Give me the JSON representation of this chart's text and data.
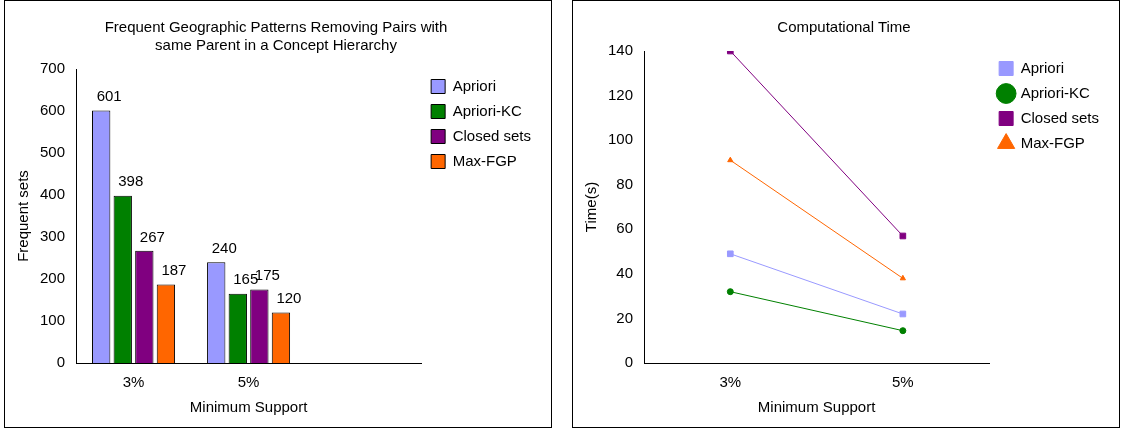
{
  "chart_data": [
    {
      "type": "bar",
      "title": "Frequent Geographic Patterns Removing Pairs with same Parent in a Concept Hierarchy",
      "xlabel": "Minimum Support",
      "ylabel": "Frequent sets",
      "categories": [
        "3%",
        "5%",
        null
      ],
      "series": [
        {
          "name": "Apriori",
          "color": "#9999ff",
          "values": [
            601,
            240,
            null
          ]
        },
        {
          "name": "Apriori-KC",
          "color": "#008000",
          "values": [
            398,
            165,
            null
          ]
        },
        {
          "name": "Closed sets",
          "color": "#800080",
          "values": [
            267,
            175,
            null
          ]
        },
        {
          "name": "Max-FGP",
          "color": "#ff6600",
          "values": [
            187,
            120,
            null
          ]
        }
      ],
      "ylim": [
        0,
        700
      ],
      "yticks": [
        0,
        100,
        200,
        300,
        400,
        500,
        600,
        700
      ],
      "grid": false,
      "legend": "top right",
      "data_labels": true
    },
    {
      "type": "line",
      "title": "Computational Time",
      "xlabel": "Minimum Support",
      "ylabel": "Time(s)",
      "categories": [
        "3%",
        "5%"
      ],
      "series": [
        {
          "name": "Apriori",
          "color": "#9999ff",
          "values": [
            49,
            22
          ],
          "marker": "square"
        },
        {
          "name": "Apriori-KC",
          "color": "#008000",
          "values": [
            32,
            14.5
          ],
          "marker": "circle"
        },
        {
          "name": "Closed sets",
          "color": "#800080",
          "values": [
            140,
            57
          ],
          "marker": "square"
        },
        {
          "name": "Max-FGP",
          "color": "#ff6600",
          "values": [
            91,
            38
          ],
          "marker": "triangle"
        }
      ],
      "ylim": [
        0,
        140
      ],
      "yticks": [
        0,
        20,
        40,
        60,
        80,
        100,
        120,
        140
      ],
      "grid": false,
      "legend": "top right"
    }
  ]
}
